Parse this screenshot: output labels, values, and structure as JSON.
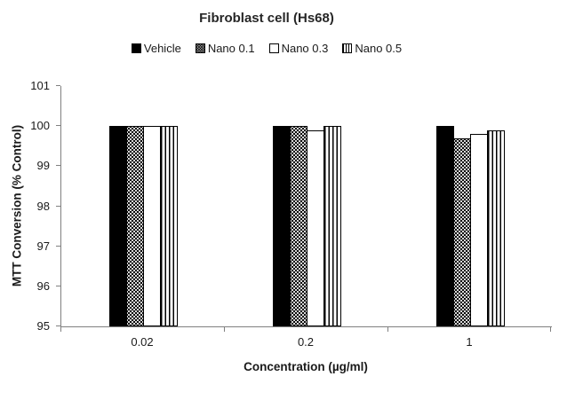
{
  "chart_data": {
    "type": "bar",
    "title": "Fibroblast cell (Hs68)",
    "xlabel": "Concentration (µg/ml)",
    "ylabel": "MTT Conversion (% Control)",
    "categories": [
      "0.02",
      "0.2",
      "1"
    ],
    "series": [
      {
        "name": "Vehicle",
        "pattern": "solid",
        "values": [
          100,
          100,
          100
        ]
      },
      {
        "name": "Nano 0.1",
        "pattern": "dots",
        "values": [
          100,
          100,
          99.7
        ]
      },
      {
        "name": "Nano 0.3",
        "pattern": "plain",
        "values": [
          100,
          99.9,
          99.8
        ]
      },
      {
        "name": "Nano 0.5",
        "pattern": "vstripes",
        "values": [
          100,
          100,
          99.9
        ]
      }
    ],
    "ylim": [
      95,
      101
    ],
    "yticks": [
      95,
      96,
      97,
      98,
      99,
      100,
      101
    ],
    "grid": "off",
    "legend_position": "top",
    "colors": {
      "bar_fill": "#000000",
      "axis_line": "#808080",
      "text": "#1a1a1a"
    }
  }
}
